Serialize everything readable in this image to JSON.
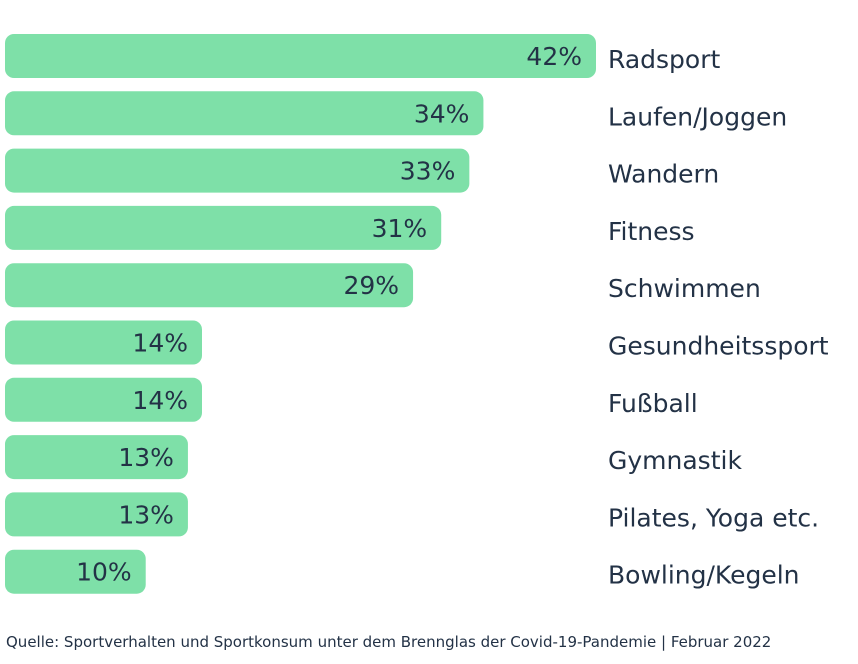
{
  "chart_data": {
    "type": "bar",
    "orientation": "horizontal",
    "categories": [
      "Radsport",
      "Laufen/Joggen",
      "Wandern",
      "Fitness",
      "Schwimmen",
      "Gesundheitssport",
      "Fußball",
      "Gymnastik",
      "Pilates, Yoga etc.",
      "Bowling/Kegeln"
    ],
    "values": [
      42,
      34,
      33,
      31,
      29,
      14,
      14,
      13,
      13,
      10
    ],
    "value_labels": [
      "42%",
      "34%",
      "33%",
      "31%",
      "29%",
      "14%",
      "14%",
      "13%",
      "13%",
      "10%"
    ],
    "unit": "%",
    "xlim": [
      0,
      42
    ],
    "grid": false,
    "legend": "none",
    "bar_color": "#7ee0a8",
    "text_color": "#233246"
  },
  "source": "Quelle: Sportverhalten und Sportkonsum unter dem Brennglas der Covid-19-Pandemie | Februar 2022"
}
